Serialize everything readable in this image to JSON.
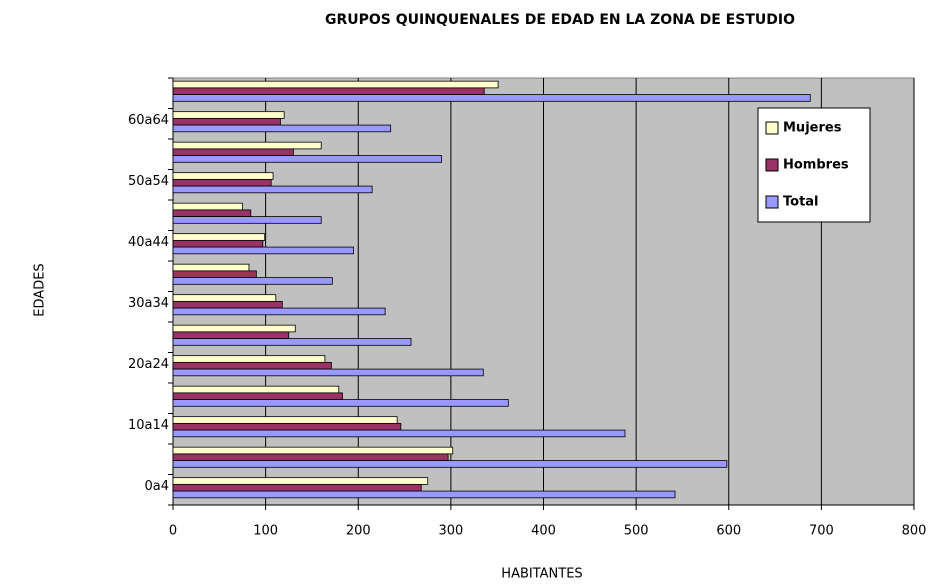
{
  "chart_data": {
    "type": "barh",
    "title": "GRUPOS QUINQUENALES DE EDAD EN LA ZONA DE ESTUDIO",
    "x_label": "HABITANTES",
    "y_label": "EDADES",
    "categories": [
      "0a4",
      null,
      "10a14",
      null,
      "20a24",
      null,
      "30a34",
      null,
      "40a44",
      null,
      "50a54",
      null,
      "60a64",
      null
    ],
    "series": [
      {
        "name": "Mujeres",
        "color": "#ffffcc",
        "values": [
          275,
          302,
          242,
          179,
          164,
          132,
          111,
          82,
          99,
          75,
          108,
          160,
          120,
          351
        ]
      },
      {
        "name": "Hombres",
        "color": "#993366",
        "values": [
          268,
          297,
          246,
          183,
          171,
          125,
          118,
          90,
          97,
          84,
          106,
          130,
          116,
          336
        ]
      },
      {
        "name": "Total",
        "color": "#9999ff",
        "values": [
          542,
          598,
          488,
          362,
          335,
          257,
          229,
          172,
          195,
          160,
          215,
          290,
          235,
          688
        ]
      }
    ],
    "xlim": [
      0,
      800
    ],
    "xticks": [
      0,
      100,
      200,
      300,
      400,
      500,
      600,
      700,
      800
    ],
    "grid": true,
    "legend": "upper right",
    "background": "#c0c0c0"
  }
}
